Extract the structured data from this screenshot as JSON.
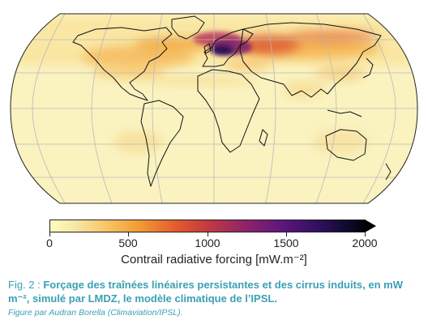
{
  "colorbar": {
    "label": "Contrail radiative forcing [mW.m⁻²]",
    "ticks": [
      "0",
      "500",
      "1000",
      "1500",
      "2000"
    ],
    "tick_values": [
      0,
      500,
      1000,
      1500,
      2000
    ],
    "range": [
      0,
      2000
    ],
    "colormap": "inferno_r",
    "extend": "max"
  },
  "caption": {
    "prefix": "Fig. 2 : ",
    "text": "Forçage des traînées linéaires persistantes et des cirrus induits, en mW m⁻², simulé par LMDZ, le modèle climatique de l’IPSL.",
    "credit": "Figure par Audran Borella (Climaviation/IPSL)."
  },
  "colors": {
    "caption": "#3aa0b5",
    "map_background": "#faf3c0",
    "coastline": "#111111",
    "graticule": "#b8b8b8"
  },
  "map": {
    "projection": "Robinson",
    "variable": "contrail-radiative-forcing"
  }
}
